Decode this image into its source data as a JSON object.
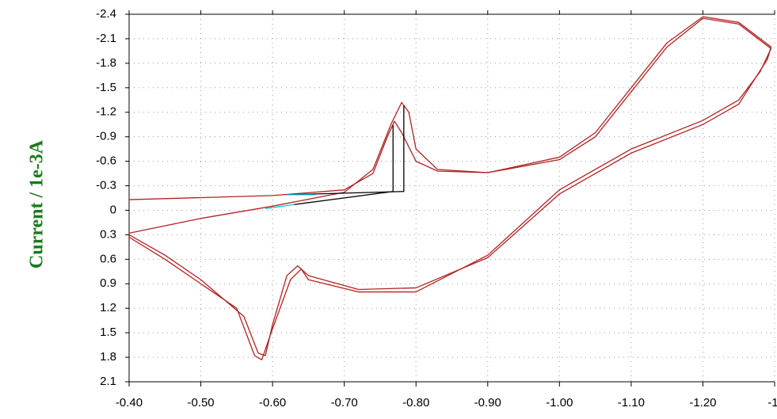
{
  "chart_data": {
    "type": "line",
    "y_label": "Current / 1e-3A",
    "xlim": [
      -0.4,
      -1.3
    ],
    "ylim": [
      2.1,
      -2.4
    ],
    "xticks": [
      {
        "value": -0.4,
        "label": "-0.40"
      },
      {
        "value": -0.5,
        "label": "-0.50"
      },
      {
        "value": -0.6,
        "label": "-0.60"
      },
      {
        "value": -0.7,
        "label": "-0.70"
      },
      {
        "value": -0.8,
        "label": "-0.80"
      },
      {
        "value": -0.9,
        "label": "-0.90"
      },
      {
        "value": -1.0,
        "label": "-1.00"
      },
      {
        "value": -1.1,
        "label": "-1.10"
      },
      {
        "value": -1.2,
        "label": "-1.20"
      },
      {
        "value": -1.3,
        "label": "-1."
      }
    ],
    "yticks": [
      -2.4,
      -2.1,
      -1.8,
      -1.5,
      -1.2,
      -0.9,
      -0.6,
      -0.3,
      0,
      0.3,
      0.6,
      0.9,
      1.2,
      1.5,
      1.8,
      2.1
    ],
    "grid": true,
    "series": [
      {
        "color": "#b22222",
        "x": [
          -0.4,
          -0.6,
          -0.7,
          -0.74,
          -0.76,
          -0.77,
          -0.78,
          -0.8,
          -0.83,
          -0.9,
          -1.0,
          -1.05,
          -1.1,
          -1.15,
          -1.2,
          -1.25,
          -1.295,
          -1.29,
          -1.25,
          -1.2,
          -1.1,
          -1.0,
          -0.9,
          -0.8,
          -0.72,
          -0.65,
          -0.635,
          -0.62,
          -0.6,
          -0.59,
          -0.58,
          -0.56,
          -0.5,
          -0.45,
          -0.4
        ],
        "values": [
          -0.13,
          -0.18,
          -0.25,
          -0.45,
          -0.9,
          -1.09,
          -0.95,
          -0.6,
          -0.48,
          -0.46,
          -0.65,
          -0.95,
          -1.5,
          -2.05,
          -2.37,
          -2.3,
          -2.0,
          -1.85,
          -1.3,
          -1.05,
          -0.7,
          -0.2,
          0.58,
          0.95,
          0.97,
          0.8,
          0.68,
          0.8,
          1.4,
          1.78,
          1.75,
          1.3,
          0.85,
          0.55,
          0.3
        ]
      },
      {
        "color": "#b22222",
        "x": [
          -0.4,
          -0.5,
          -0.6,
          -0.7,
          -0.74,
          -0.765,
          -0.78,
          -0.79,
          -0.8,
          -0.83,
          -0.9,
          -1.0,
          -1.05,
          -1.1,
          -1.15,
          -1.2,
          -1.25,
          -1.295,
          -1.28,
          -1.25,
          -1.2,
          -1.1,
          -1.0,
          -0.9,
          -0.8,
          -0.72,
          -0.65,
          -0.64,
          -0.625,
          -0.6,
          -0.585,
          -0.575,
          -0.55,
          -0.5,
          -0.45,
          -0.4
        ],
        "values": [
          0.28,
          0.1,
          -0.05,
          -0.22,
          -0.5,
          -1.05,
          -1.32,
          -1.2,
          -0.75,
          -0.5,
          -0.46,
          -0.62,
          -0.9,
          -1.45,
          -2.0,
          -2.35,
          -2.28,
          -1.98,
          -1.7,
          -1.35,
          -1.1,
          -0.75,
          -0.25,
          0.55,
          1.0,
          1.0,
          0.85,
          0.72,
          0.85,
          1.45,
          1.83,
          1.78,
          1.2,
          0.9,
          0.6,
          0.33
        ]
      },
      {
        "color": "#000000",
        "x": [
          -0.63,
          -0.768,
          -0.768
        ],
        "values": [
          -0.07,
          -0.23,
          -1.04
        ]
      },
      {
        "color": "#000000",
        "x": [
          -0.62,
          -0.783,
          -0.783
        ],
        "values": [
          -0.19,
          -0.23,
          -1.28
        ]
      },
      {
        "color": "#00c8e0",
        "x": [
          -0.59,
          -0.63
        ],
        "values": [
          -0.02,
          -0.07
        ]
      },
      {
        "color": "#00c8e0",
        "x": [
          -0.62,
          -0.66
        ],
        "values": [
          -0.19,
          -0.19
        ]
      }
    ]
  }
}
